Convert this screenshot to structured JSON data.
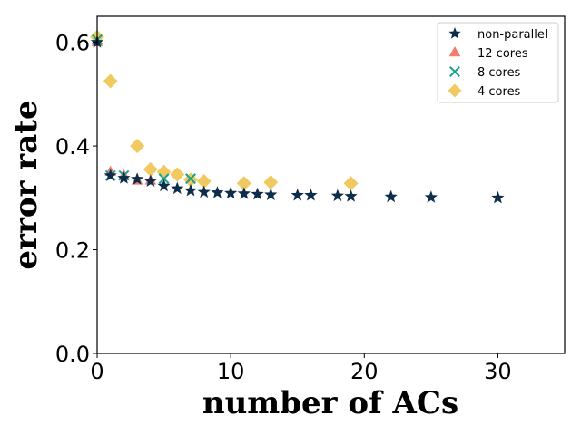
{
  "chart_data": {
    "type": "scatter",
    "xlabel": "number of ACs",
    "ylabel": "error rate",
    "xlim": [
      0,
      35
    ],
    "ylim": [
      0,
      0.65
    ],
    "xticks": [
      0,
      10,
      20,
      30
    ],
    "yticks": [
      0.0,
      0.2,
      0.4,
      0.6
    ],
    "xtick_labels": [
      "0",
      "10",
      "20",
      "30"
    ],
    "ytick_labels": [
      "0.0",
      "0.2",
      "0.4",
      "0.6"
    ],
    "grid": false,
    "legend_position": "top-right",
    "series": [
      {
        "name": "non-parallel",
        "marker": "star",
        "color": "#0d2d4a",
        "x": [
          0,
          1,
          2,
          3,
          4,
          5,
          6,
          7,
          8,
          9,
          10,
          11,
          12,
          13,
          15,
          16,
          18,
          19,
          22,
          25,
          30
        ],
        "y": [
          0.6,
          0.343,
          0.338,
          0.336,
          0.332,
          0.323,
          0.318,
          0.314,
          0.311,
          0.31,
          0.309,
          0.308,
          0.307,
          0.306,
          0.305,
          0.305,
          0.304,
          0.303,
          0.302,
          0.301,
          0.3
        ]
      },
      {
        "name": "12 cores",
        "marker": "triangle",
        "color": "#f07060",
        "x": [
          0,
          1,
          2,
          3,
          4
        ],
        "y": [
          0.6,
          0.35,
          0.343,
          0.333,
          0.333
        ]
      },
      {
        "name": "8 cores",
        "marker": "x",
        "color": "#17a38d",
        "x": [
          0,
          1,
          2,
          5,
          7
        ],
        "y": [
          0.605,
          0.343,
          0.343,
          0.337,
          0.337
        ]
      },
      {
        "name": "4 cores",
        "marker": "diamond",
        "color": "#eebb3a",
        "x": [
          0,
          1,
          3,
          4,
          5,
          6,
          7,
          8,
          11,
          13,
          19
        ],
        "y": [
          0.61,
          0.525,
          0.4,
          0.355,
          0.35,
          0.345,
          0.335,
          0.332,
          0.328,
          0.33,
          0.328
        ]
      }
    ]
  }
}
